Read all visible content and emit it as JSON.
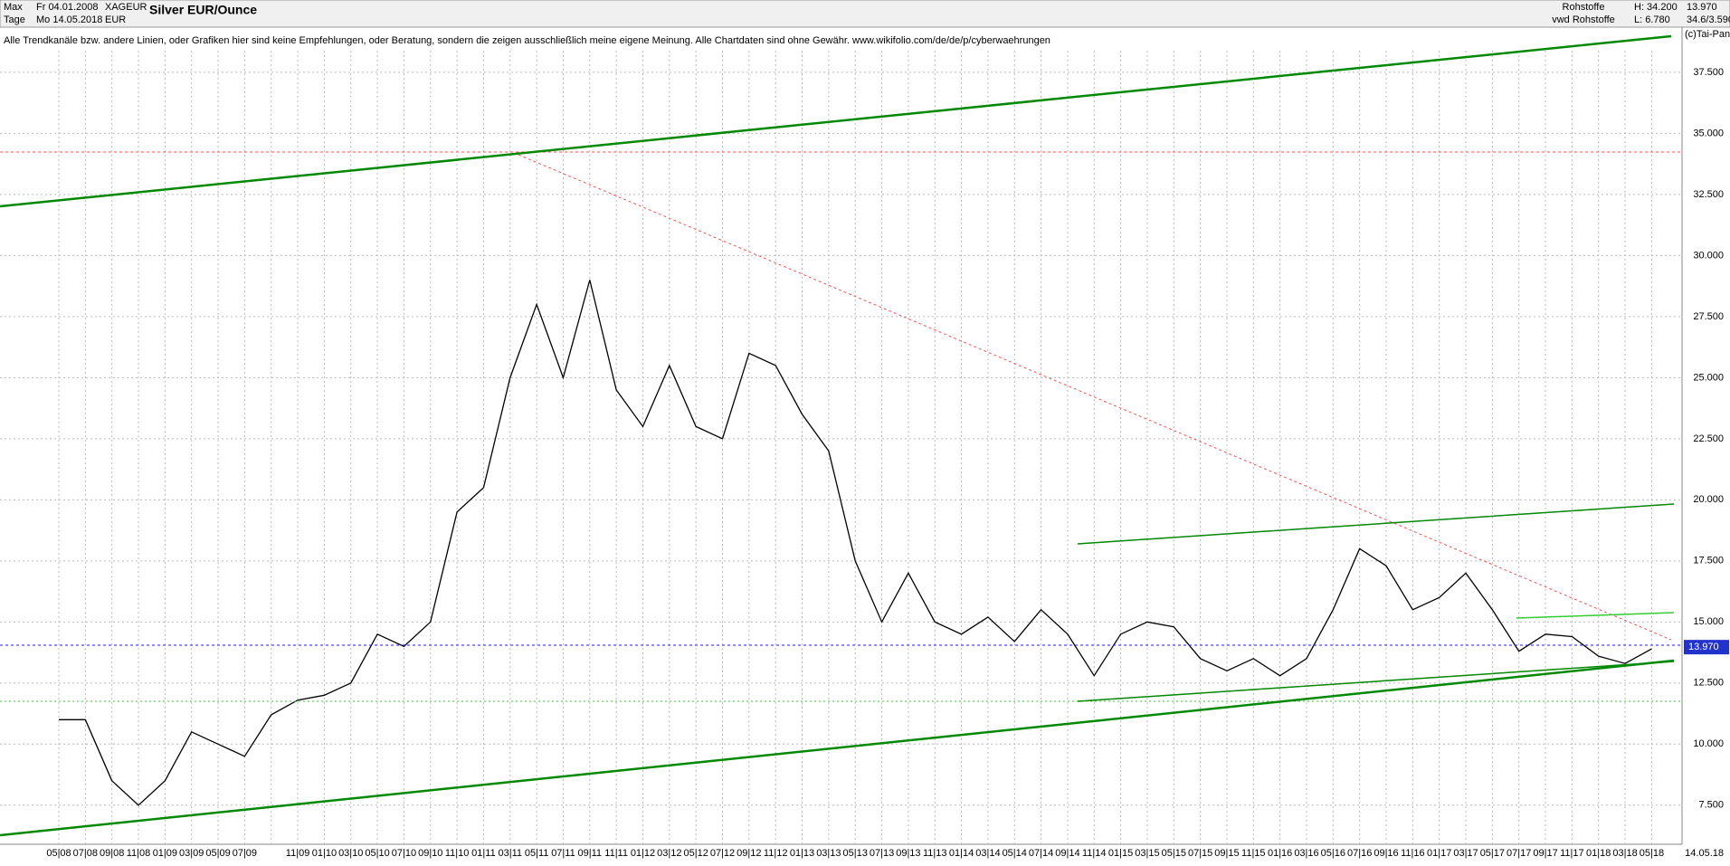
{
  "header": {
    "range": "Max",
    "period": "Tage",
    "from": "Fr 04.01.2008",
    "to": "Mo 14.05.2018",
    "symbol": "XAGEUR",
    "currency": "EUR",
    "title": "Silver EUR/Ounce",
    "group": "Rohstoffe",
    "source": "vwd Rohstoffe",
    "high": "H: 34.200",
    "low": "L: 6.780",
    "last": "13.970",
    "span": "34.6/3.590",
    "copyright": "(c)Tai-Pan",
    "disclaimer": "Alle Trendkanäle bzw. andere Linien, oder Grafiken hier sind keine Empfehlungen, oder Beratung, sondern die zeigen ausschließlich meine eigene Meinung. Alle Chartdaten sind ohne Gewähr.  www.wikifolio.com/de/de/p/cyberwaehrungen",
    "end_date": "14.05.18"
  },
  "chart_data": {
    "type": "line",
    "categories": [
      "05|08",
      "07|08",
      "09|08",
      "11|08",
      "01|09",
      "03|09",
      "05|09",
      "07|09",
      null,
      "11|09",
      "01|10",
      "03|10",
      "05|10",
      "07|10",
      "09|10",
      "11|10",
      "01|11",
      "03|11",
      "05|11",
      "07|11",
      "09|11",
      "11|11",
      "01|12",
      "03|12",
      "05|12",
      "07|12",
      "09|12",
      "11|12",
      "01|13",
      "03|13",
      "05|13",
      "07|13",
      "09|13",
      "11|13",
      "01|14",
      "03|14",
      "05|14",
      "07|14",
      "09|14",
      "11|14",
      "01|15",
      "03|15",
      "05|15",
      "07|15",
      "09|15",
      "11|15",
      "01|16",
      "03|16",
      "05|16",
      "07|16",
      "09|16",
      "11|16",
      "01|17",
      "03|17",
      "05|17",
      "07|17",
      "09|17",
      "11|17",
      "01|18",
      "03|18",
      "05|18"
    ],
    "series": [
      {
        "name": "Silver EUR/Ounce",
        "color": "#000000",
        "values": [
          11.0,
          11.0,
          8.5,
          7.5,
          8.5,
          10.5,
          10.0,
          9.5,
          11.2,
          11.8,
          12.0,
          12.5,
          14.5,
          14.0,
          15.0,
          19.5,
          20.5,
          25.0,
          28.0,
          25.0,
          29.0,
          24.5,
          23.0,
          25.5,
          23.0,
          22.5,
          26.0,
          25.5,
          23.5,
          22.0,
          17.5,
          15.0,
          17.0,
          15.0,
          14.5,
          15.2,
          14.2,
          15.5,
          14.5,
          12.8,
          14.5,
          15.0,
          14.8,
          13.5,
          13.0,
          13.5,
          12.8,
          13.5,
          15.5,
          18.0,
          17.3,
          15.5,
          16.0,
          17.0,
          15.5,
          13.8,
          14.5,
          14.4,
          13.6,
          13.3,
          13.9
        ]
      }
    ],
    "ylim": [
      5.9,
      39.2
    ],
    "yticks": [
      {
        "value": 7.5,
        "label": "7.500"
      },
      {
        "value": 10,
        "label": "10.000"
      },
      {
        "value": 12.5,
        "label": "12.500"
      },
      {
        "value": 15,
        "label": "15.000"
      },
      {
        "value": 17.5,
        "label": "17.500"
      },
      {
        "value": 20,
        "label": "20.000"
      },
      {
        "value": 22.5,
        "label": "22.500"
      },
      {
        "value": 25,
        "label": "25.000"
      },
      {
        "value": 27.5,
        "label": "27.500"
      },
      {
        "value": 30,
        "label": "30.000"
      },
      {
        "value": 32.5,
        "label": "32.500"
      },
      {
        "value": 35,
        "label": "35.000"
      },
      {
        "value": 37.5,
        "label": "37.500"
      }
    ],
    "current_price": {
      "value": 13.97,
      "label": "13.970"
    },
    "grid": true
  }
}
